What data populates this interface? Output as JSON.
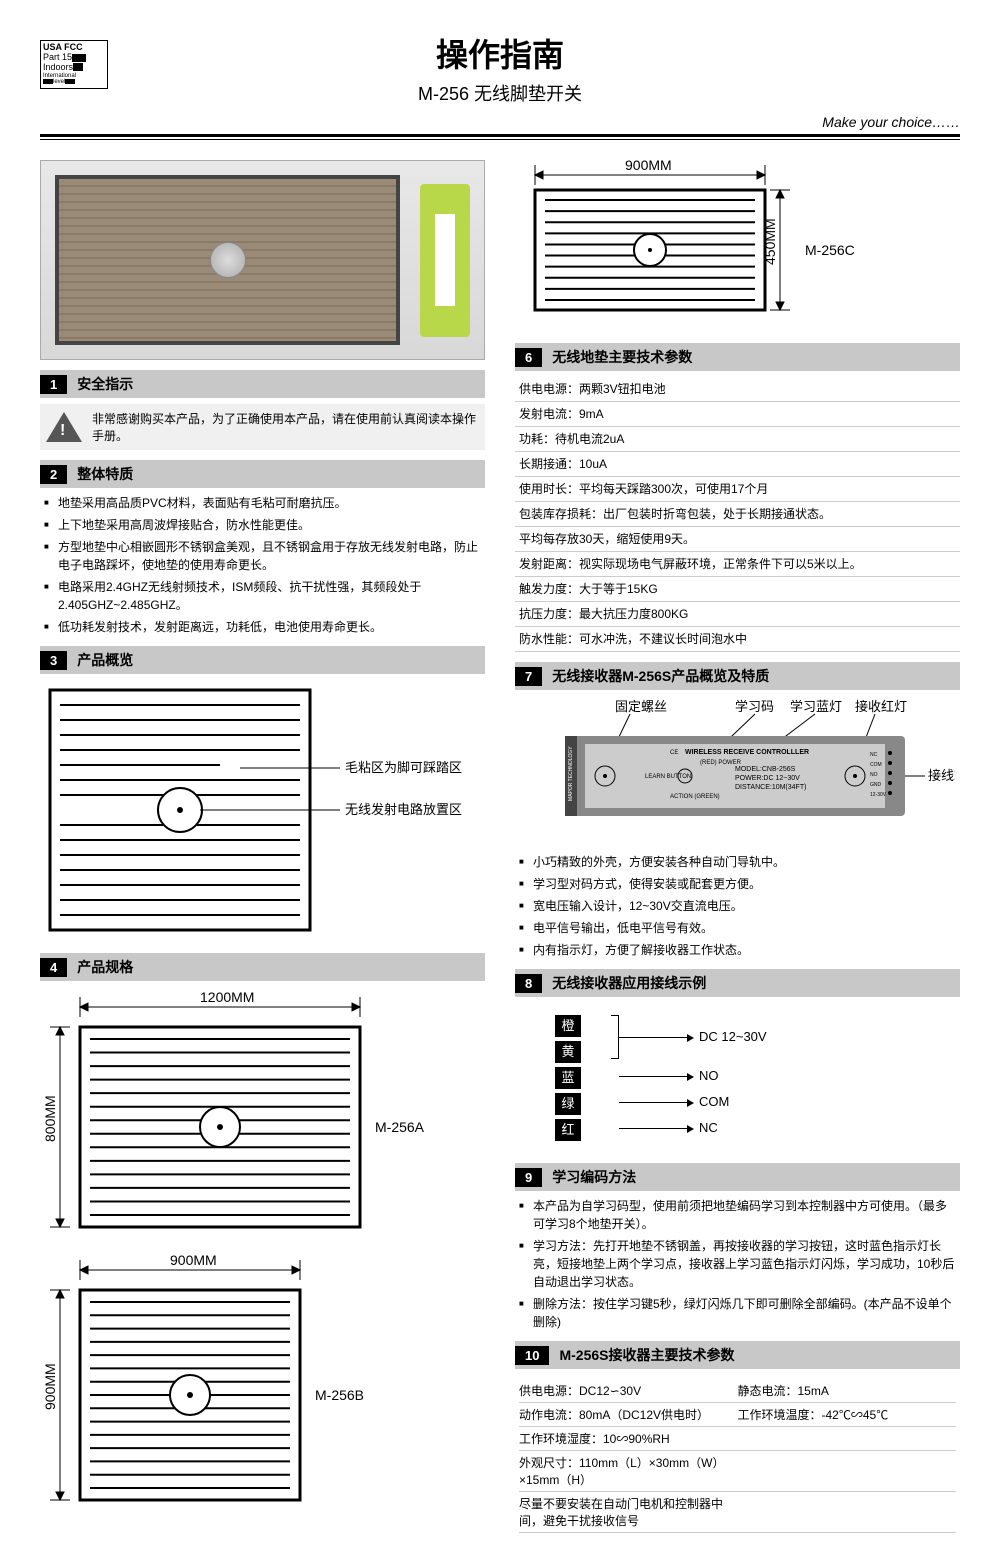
{
  "fcc": {
    "l1": "USA FCC",
    "l2": "Part 15",
    "l3": "Indoors",
    "l4": "International",
    "l5": "level"
  },
  "header": {
    "title": "操作指南",
    "subtitle": "M-256  无线脚垫开关",
    "tagline": "Make  your choice……"
  },
  "left": {
    "s1": {
      "num": "1",
      "title": "安全指示",
      "warn": "非常感谢购买本产品，为了正确使用本产品，请在使用前认真阅读本操作手册。"
    },
    "s2": {
      "num": "2",
      "title": "整体特质",
      "items": [
        "地垫采用高品质PVC材料，表面贴有毛粘可耐磨抗压。",
        "上下地垫采用高周波焊接贴合，防水性能更佳。",
        "方型地垫中心相嵌圆形不锈钢盒美观，且不锈钢盒用于存放无线发射电路，防止电子电路踩坏，使地垫的使用寿命更长。",
        "电路采用2.4GHZ无线射频技术，ISM频段、抗干扰性强，其频段处于2.405GHZ~2.485GHZ。",
        "低功耗发射技术，发射距离远，功耗低，电池使用寿命更长。"
      ]
    },
    "s3": {
      "num": "3",
      "title": "产品概览",
      "callout1": "毛粘区为脚可踩踏区",
      "callout2": "无线发射电路放置区"
    },
    "s4": {
      "num": "4",
      "title": "产品规格"
    },
    "matA": {
      "w": "1200MM",
      "h": "800MM",
      "label": "M-256A"
    },
    "matB": {
      "w": "900MM",
      "h": "900MM",
      "label": "M-256B"
    }
  },
  "right": {
    "matC": {
      "w": "900MM",
      "h": "450MM",
      "label": "M-256C"
    },
    "s6": {
      "num": "6",
      "title": "无线地垫主要技术参数",
      "rows": [
        "供电电源：两颗3V钮扣电池",
        "发射电流：9mA",
        "功耗：待机电流2uA",
        "长期接通：10uA",
        "使用时长：平均每天踩踏300次，可使用17个月",
        "包装库存损耗：出厂包装时折弯包装，处于长期接通状态。",
        "平均每存放30天，缩短使用9天。",
        "发射距离：视实际现场电气屏蔽环境，正常条件下可以5米以上。",
        "触发力度：大于等于15KG",
        "抗压力度：最大抗压力度800KG",
        "防水性能：可水冲洗，不建议长时间泡水中"
      ]
    },
    "s7": {
      "num": "7",
      "title": "无线接收器M-256S产品概览及特质",
      "labels": {
        "a": "固定螺丝",
        "b": "学习码",
        "c": "学习蓝灯",
        "d": "接收红灯",
        "e": "接线端"
      },
      "panel": {
        "title": "WIRELESS RECEIVE  CONTROLLLER",
        "learn": "LEARN BUTTON",
        "action": "ACTION (GREEN)",
        "red": "(RED) POWER",
        "m": "MODEL:CNB-256S",
        "p": "POWER:DC 12~30V",
        "d": "DISTANCE:10M(34FT)",
        "pins": [
          "NC",
          "COM",
          "NO",
          "GND",
          "12-30V"
        ]
      },
      "items": [
        "小巧精致的外壳，方便安装各种自动门导轨中。",
        "学习型对码方式，使得安装或配套更方便。",
        "宽电压输入设计，12~30V交直流电压。",
        "电平信号输出，低电平信号有效。",
        "内有指示灯，方便了解接收器工作状态。"
      ]
    },
    "s8": {
      "num": "8",
      "title": "无线接收器应用接线示例",
      "wires": [
        "橙",
        "黄",
        "蓝",
        "绿",
        "红"
      ],
      "sigs": [
        "DC 12~30V",
        "NO",
        "COM",
        "NC"
      ]
    },
    "s9": {
      "num": "9",
      "title": "学习编码方法",
      "items": [
        "本产品为自学习码型，使用前须把地垫编码学习到本控制器中方可使用。（最多可学习8个地垫开关）。",
        "学习方法：先打开地垫不锈钢盖，再按接收器的学习按钮，这时蓝色指示灯长亮，短接地垫上两个学习点，接收器上学习蓝色指示灯闪烁，学习成功，10秒后自动退出学习状态。",
        "删除方法：按住学习键5秒，绿灯闪烁几下即可删除全部编码。(本产品不设单个删除)"
      ]
    },
    "s10": {
      "num": "10",
      "title": "M-256S接收器主要技术参数",
      "rows": [
        [
          "供电电源：DC12∽30V",
          "静态电流：15mA"
        ],
        [
          "动作电流：80mA（DC12V供电时）",
          "工作环境温度：-42℃∽45℃"
        ],
        [
          "工作环境湿度：10∽90%RH",
          ""
        ],
        [
          "外观尺寸：110mm（L）×30mm（W）×15mm（H）",
          ""
        ],
        [
          "尽量不要安装在自动门电机和控制器中间，避免干扰接收信号",
          ""
        ]
      ]
    }
  }
}
